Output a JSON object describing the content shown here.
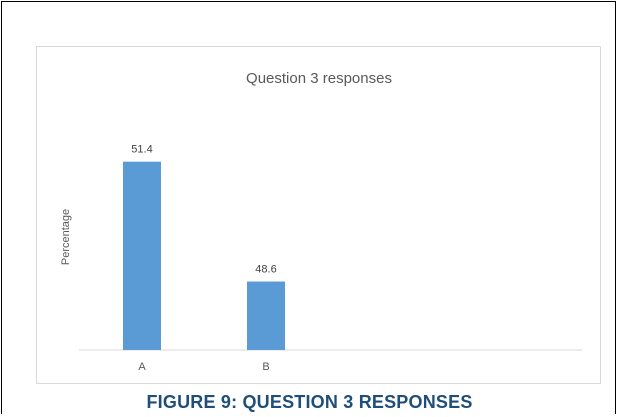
{
  "chart_data": {
    "type": "bar",
    "title": "Question 3 responses",
    "xlabel": "",
    "ylabel": "Percentage",
    "categories": [
      "A",
      "B"
    ],
    "values": [
      51.4,
      48.6
    ],
    "data_labels": [
      "51.4",
      "48.6"
    ],
    "ylim": [
      47.0,
      52.0
    ],
    "grid": false,
    "legend": "none",
    "bar_color": "#5b9bd5"
  },
  "caption": "FIGURE 9: QUESTION 3 RESPONSES"
}
